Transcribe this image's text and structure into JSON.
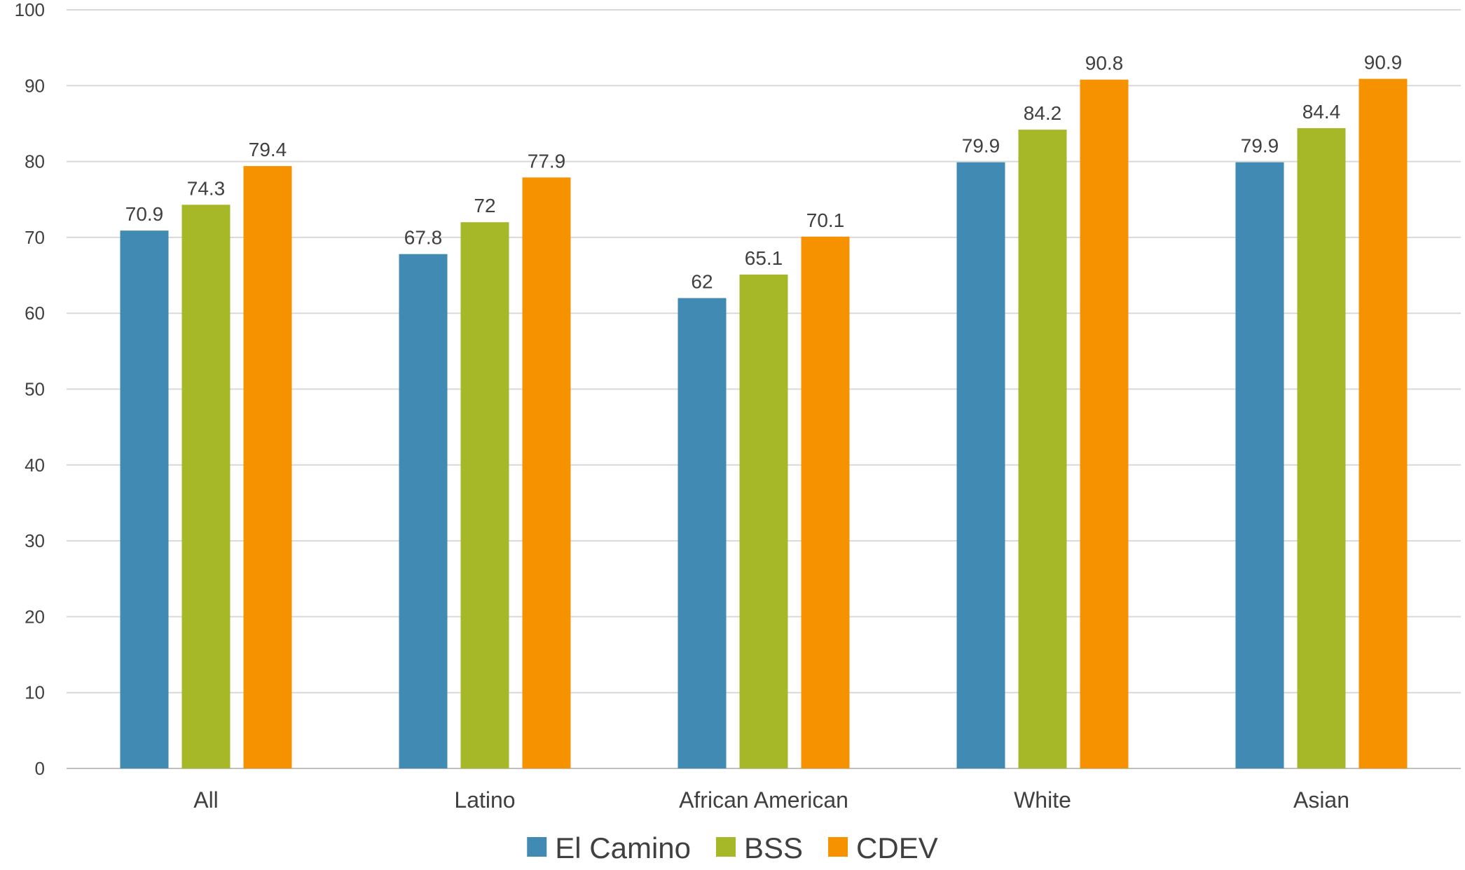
{
  "chart_data": {
    "type": "bar",
    "title": "",
    "xlabel": "",
    "ylabel": "",
    "ylim": [
      0,
      100
    ],
    "yticks": [
      0,
      10,
      20,
      30,
      40,
      50,
      60,
      70,
      80,
      90,
      100
    ],
    "grid": true,
    "legend_position": "bottom",
    "categories": [
      "All",
      "Latino",
      "African American",
      "White",
      "Asian"
    ],
    "series": [
      {
        "name": "El Camino",
        "color": "#418ab3",
        "values": [
          70.9,
          67.8,
          62,
          79.9,
          79.9
        ]
      },
      {
        "name": "BSS",
        "color": "#a6b727",
        "values": [
          74.3,
          72,
          65.1,
          84.2,
          84.4
        ]
      },
      {
        "name": "CDEV",
        "color": "#f69200",
        "values": [
          79.4,
          77.9,
          70.1,
          90.8,
          90.9
        ]
      }
    ]
  }
}
